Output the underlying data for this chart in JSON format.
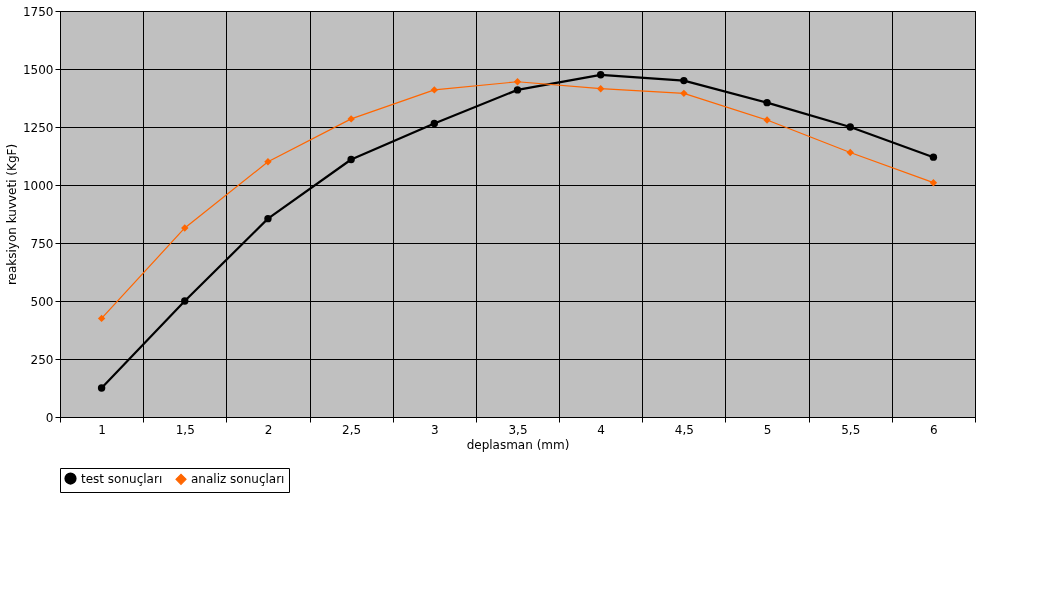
{
  "chart_data": {
    "type": "line",
    "xlabel": "deplasman (mm)",
    "ylabel": "reaksiyon kuvveti (KgF)",
    "x": [
      1,
      1.5,
      2,
      2.5,
      3,
      3.5,
      4,
      4.5,
      5,
      5.5,
      6
    ],
    "series": [
      {
        "name": "test sonuçları",
        "color": "#000000",
        "marker": "circle",
        "values": [
          125,
          500,
          855,
          1110,
          1265,
          1410,
          1475,
          1450,
          1355,
          1250,
          1120
        ]
      },
      {
        "name": "analiz sonuçları",
        "color": "#ff6600",
        "marker": "diamond",
        "values": [
          425,
          815,
          1100,
          1285,
          1410,
          1445,
          1415,
          1395,
          1280,
          1140,
          1010
        ]
      }
    ],
    "xlim": [
      0.75,
      6.25
    ],
    "xticks": [
      {
        "value": 0.75,
        "label": null
      },
      1,
      {
        "value": 1.25,
        "label": null
      },
      {
        "value": 1.5,
        "label": "1,5"
      },
      {
        "value": 1.75,
        "label": null
      },
      2,
      {
        "value": 2.25,
        "label": null
      },
      {
        "value": 2.5,
        "label": "2,5"
      },
      {
        "value": 2.75,
        "label": null
      },
      3,
      {
        "value": 3.25,
        "label": null
      },
      {
        "value": 3.5,
        "label": "3,5"
      },
      {
        "value": 3.75,
        "label": null
      },
      4,
      {
        "value": 4.25,
        "label": null
      },
      {
        "value": 4.5,
        "label": "4,5"
      },
      {
        "value": 4.75,
        "label": null
      },
      5,
      {
        "value": 5.25,
        "label": null
      },
      {
        "value": 5.5,
        "label": "5,5"
      },
      {
        "value": 5.75,
        "label": null
      },
      6,
      {
        "value": 6.25,
        "label": null
      }
    ],
    "ylim": [
      0,
      1750
    ],
    "yticks": [
      0,
      250,
      500,
      750,
      1000,
      1250,
      1500,
      1750
    ],
    "grid": true,
    "legend": "bottom"
  }
}
